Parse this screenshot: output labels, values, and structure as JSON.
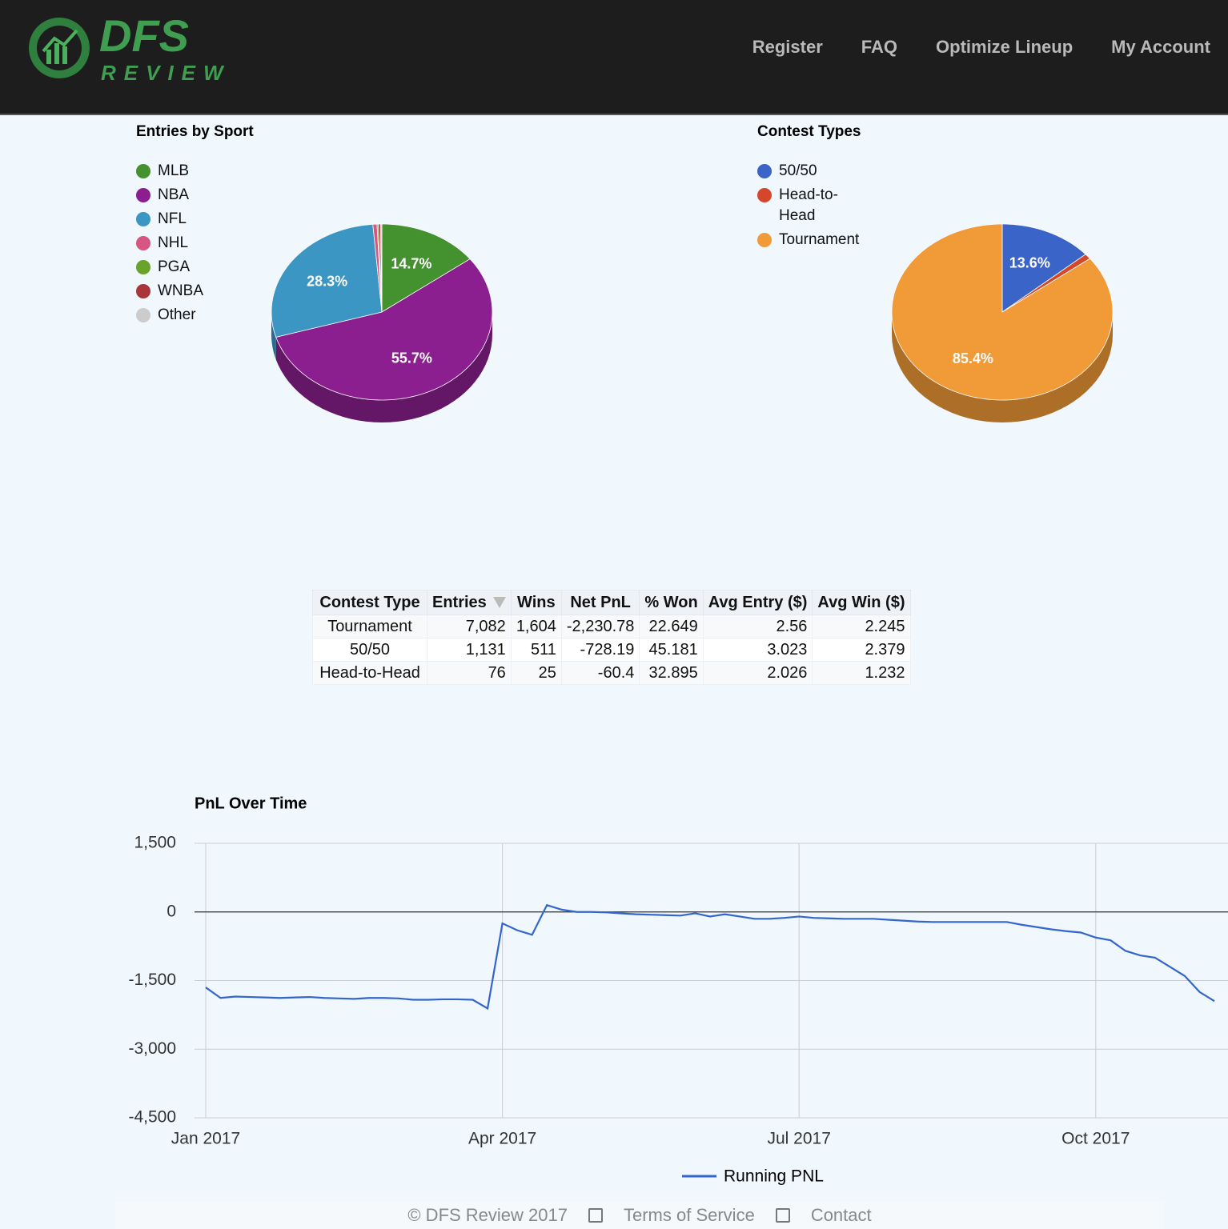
{
  "nav": {
    "logo_top": "DFS",
    "logo_bottom": "REVIEW",
    "links": [
      "Register",
      "FAQ",
      "Optimize Lineup",
      "My Account"
    ]
  },
  "chart_data": [
    {
      "type": "pie",
      "title": "Entries by Sport",
      "categories": [
        "MLB",
        "NBA",
        "NFL",
        "NHL",
        "PGA",
        "WNBA",
        "Other"
      ],
      "values": [
        14.7,
        55.7,
        28.3,
        0.6,
        0.2,
        0.3,
        0.2
      ],
      "value_labels": [
        "14.7%",
        "55.7%",
        "28.3%",
        null,
        null,
        null,
        null
      ],
      "colors": [
        "#43912f",
        "#8b1f8f",
        "#3b96c4",
        "#d65582",
        "#6aa32a",
        "#a8363a",
        "#cccccc"
      ]
    },
    {
      "type": "pie",
      "title": "Contest Types",
      "categories": [
        "50/50",
        "Head-to-Head",
        "Tournament"
      ],
      "values": [
        13.6,
        1.0,
        85.4
      ],
      "value_labels": [
        "13.6%",
        null,
        "85.4%"
      ],
      "colors": [
        "#3a64c8",
        "#d4472a",
        "#f09a38"
      ]
    },
    {
      "type": "line",
      "title": "PnL Over Time",
      "categories": [
        "Jan 2017",
        null,
        null,
        null,
        null,
        null,
        null,
        null,
        null,
        null,
        null,
        null,
        null,
        null,
        null,
        null,
        null,
        null,
        null,
        null,
        "Apr 2017",
        null,
        null,
        null,
        null,
        null,
        null,
        null,
        null,
        null,
        null,
        null,
        null,
        null,
        null,
        null,
        null,
        null,
        null,
        null,
        "Jul 2017",
        null,
        null,
        null,
        null,
        null,
        null,
        null,
        null,
        null,
        null,
        null,
        null,
        null,
        null,
        null,
        null,
        null,
        null,
        null,
        "Oct 2017",
        null,
        null,
        null,
        null,
        null,
        null,
        null,
        null
      ],
      "series": [
        {
          "name": "Running PNL",
          "color": "#3366cc",
          "values": [
            -1650,
            -1880,
            -1850,
            -1860,
            -1870,
            -1880,
            -1870,
            -1860,
            -1880,
            -1890,
            -1900,
            -1880,
            -1880,
            -1890,
            -1920,
            -1920,
            -1910,
            -1910,
            -1920,
            -2110,
            -250,
            -400,
            -500,
            150,
            50,
            0,
            0,
            -10,
            -30,
            -50,
            -60,
            -70,
            -80,
            -30,
            -100,
            -50,
            -100,
            -150,
            -150,
            -130,
            -100,
            -130,
            -140,
            -150,
            -150,
            -150,
            -170,
            -190,
            -210,
            -220,
            -220,
            -220,
            -220,
            -220,
            -220,
            -280,
            -330,
            -380,
            -420,
            -450,
            -560,
            -620,
            -850,
            -950,
            -1000,
            -1200,
            -1400,
            -1750,
            -1950
          ]
        }
      ],
      "ylim": [
        -4500,
        1500
      ],
      "yticks": [
        {
          "value": 1500,
          "label": "1,500"
        },
        0,
        {
          "value": -1500,
          "label": "-1,500"
        },
        {
          "value": -3000,
          "label": "-3,000"
        },
        {
          "value": -4500,
          "label": "-4,500"
        }
      ],
      "grid": true
    }
  ],
  "table": {
    "columns": [
      "Contest Type",
      "Entries",
      "Wins",
      "Net PnL",
      "% Won",
      "Avg Entry ($)",
      "Avg Win ($)"
    ],
    "rows": [
      [
        "Tournament",
        "7,082",
        "1,604",
        "-2,230.78",
        "22.649",
        "2.56",
        "2.245"
      ],
      [
        "50/50",
        "1,131",
        "511",
        "-728.19",
        "45.181",
        "3.023",
        "2.379"
      ],
      [
        "Head-to-Head",
        "76",
        "25",
        "-60.4",
        "32.895",
        "2.026",
        "1.232"
      ]
    ]
  },
  "footer": {
    "copyright": "© DFS Review 2017",
    "links": [
      "Terms of Service",
      "Contact"
    ]
  }
}
